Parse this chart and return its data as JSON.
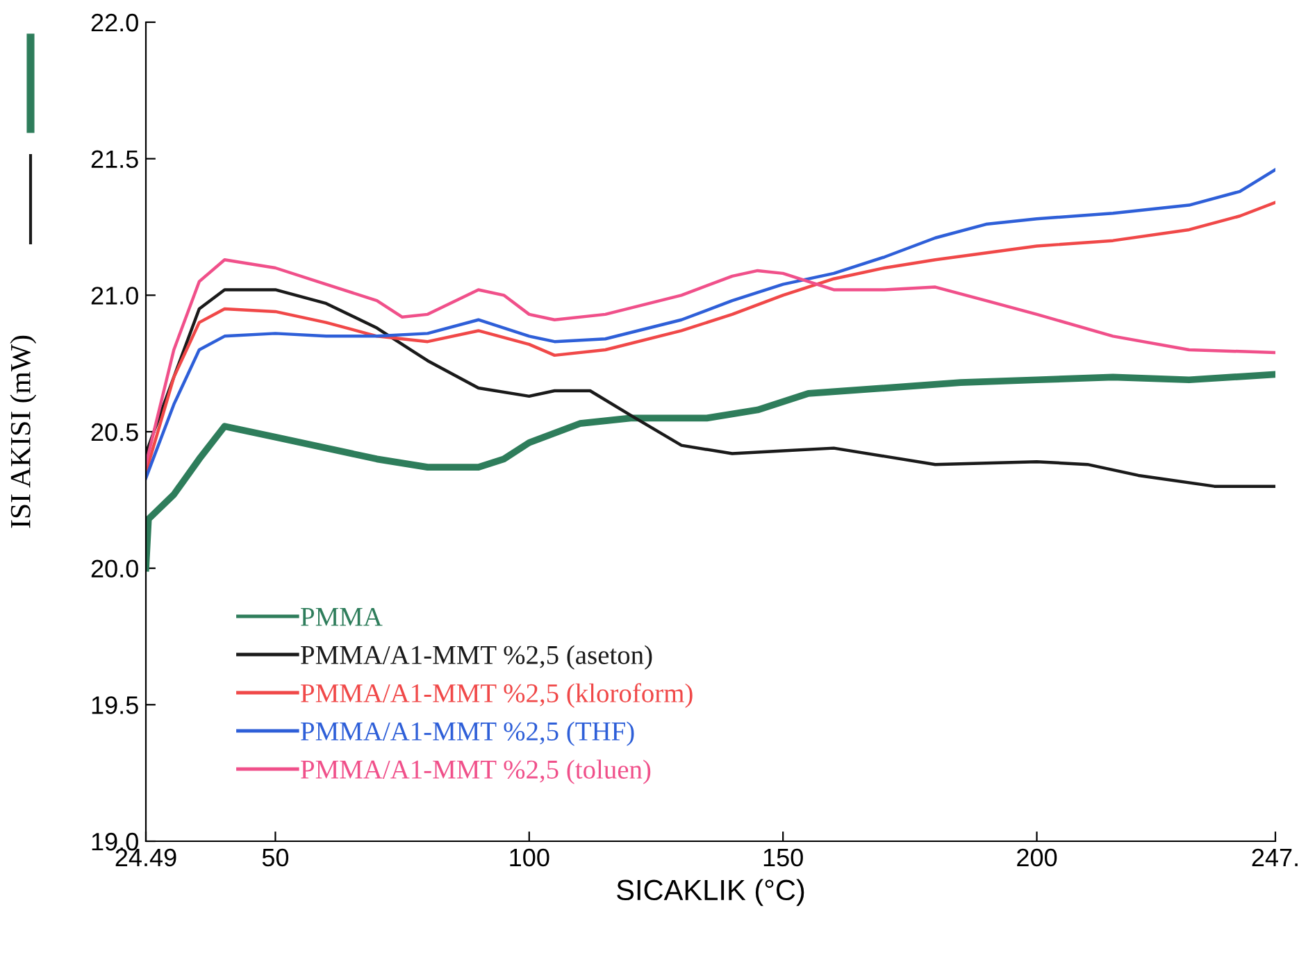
{
  "chart_data": {
    "type": "line",
    "xlabel": "SICAKLIK (°C)",
    "ylabel": "ISI AKISI (mW)",
    "xlim": [
      24.49,
      247
    ],
    "xticks": [
      24.49,
      50,
      100,
      150,
      200,
      {
        "value": 247,
        "label": "247."
      }
    ],
    "ylim": [
      19.0,
      22.0
    ],
    "yticks": [
      {
        "value": 19.0,
        "label": "19.0"
      },
      {
        "value": 19.5,
        "label": "19.5"
      },
      {
        "value": 20.0,
        "label": "20.0"
      },
      {
        "value": 20.5,
        "label": "20.5"
      },
      {
        "value": 21.0,
        "label": "21.0"
      },
      {
        "value": 21.5,
        "label": "21.5"
      },
      {
        "value": 22.0,
        "label": "22.0"
      }
    ],
    "grid": false,
    "legend": "bottom left",
    "marker": "none",
    "line_style": "solid",
    "series": [
      {
        "name": "PMMA",
        "color": "#2e7d5b",
        "x": [
          24.49,
          25,
          30,
          35,
          40,
          50,
          60,
          70,
          80,
          90,
          95,
          100,
          110,
          120,
          135,
          145,
          155,
          170,
          185,
          200,
          215,
          230,
          247
        ],
        "values": [
          20.0,
          20.18,
          20.27,
          20.4,
          20.52,
          20.48,
          20.44,
          20.4,
          20.37,
          20.37,
          20.4,
          20.46,
          20.53,
          20.55,
          20.55,
          20.58,
          20.64,
          20.66,
          20.68,
          20.69,
          20.7,
          20.69,
          20.71
        ]
      },
      {
        "name": "PMMA/A1-MMT %2,5 (aseton)",
        "color": "#1a1a1a",
        "x": [
          24.49,
          30,
          35,
          40,
          50,
          60,
          70,
          80,
          90,
          100,
          105,
          112,
          120,
          130,
          140,
          150,
          160,
          170,
          180,
          200,
          210,
          220,
          235,
          247
        ],
        "values": [
          20.42,
          20.7,
          20.95,
          21.02,
          21.02,
          20.97,
          20.88,
          20.76,
          20.66,
          20.63,
          20.65,
          20.65,
          20.56,
          20.45,
          20.42,
          20.43,
          20.44,
          20.41,
          20.38,
          20.39,
          20.38,
          20.34,
          20.3,
          20.3
        ]
      },
      {
        "name": "PMMA/A1-MMT %2,5 (kloroform)",
        "color": "#f04848",
        "x": [
          24.49,
          30,
          35,
          40,
          50,
          60,
          70,
          80,
          90,
          100,
          105,
          115,
          130,
          140,
          150,
          160,
          170,
          180,
          200,
          215,
          230,
          240,
          247
        ],
        "values": [
          20.35,
          20.7,
          20.9,
          20.95,
          20.94,
          20.9,
          20.85,
          20.83,
          20.87,
          20.82,
          20.78,
          20.8,
          20.87,
          20.93,
          21.0,
          21.06,
          21.1,
          21.13,
          21.18,
          21.2,
          21.24,
          21.29,
          21.34
        ]
      },
      {
        "name": "PMMA/A1-MMT %2,5 (THF)",
        "color": "#2e5fd8",
        "x": [
          24.49,
          30,
          35,
          40,
          50,
          60,
          70,
          80,
          90,
          100,
          105,
          115,
          130,
          140,
          150,
          160,
          170,
          180,
          190,
          200,
          215,
          230,
          240,
          247
        ],
        "values": [
          20.33,
          20.6,
          20.8,
          20.85,
          20.86,
          20.85,
          20.85,
          20.86,
          20.91,
          20.85,
          20.83,
          20.84,
          20.91,
          20.98,
          21.04,
          21.08,
          21.14,
          21.21,
          21.26,
          21.28,
          21.3,
          21.33,
          21.38,
          21.46
        ]
      },
      {
        "name": "PMMA/A1-MMT %2,5 (toluen)",
        "color": "#f0508a",
        "x": [
          24.49,
          30,
          35,
          40,
          50,
          60,
          70,
          75,
          80,
          90,
          95,
          100,
          105,
          115,
          130,
          140,
          145,
          150,
          160,
          170,
          180,
          190,
          200,
          215,
          230,
          247
        ],
        "values": [
          20.38,
          20.8,
          21.05,
          21.13,
          21.1,
          21.04,
          20.98,
          20.92,
          20.93,
          21.02,
          21.0,
          20.93,
          20.91,
          20.93,
          21.0,
          21.07,
          21.09,
          21.08,
          21.02,
          21.02,
          21.03,
          20.98,
          20.93,
          20.85,
          20.8,
          20.79
        ]
      }
    ]
  }
}
